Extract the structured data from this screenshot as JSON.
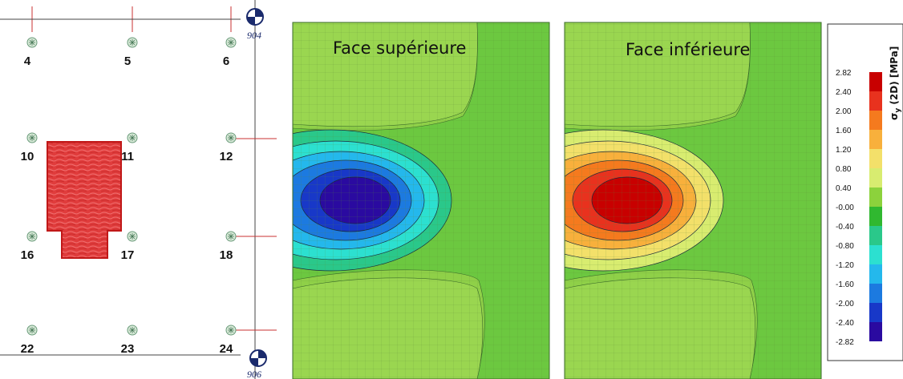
{
  "plan": {
    "nodes": [
      "4",
      "5",
      "6",
      "10",
      "11",
      "12",
      "16",
      "17",
      "18",
      "22",
      "23",
      "24"
    ],
    "axes": [
      "904",
      "906"
    ]
  },
  "maps": [
    {
      "title": "Face supérieure",
      "sign": "negative"
    },
    {
      "title": "Face inférieure",
      "sign": "positive"
    }
  ],
  "legend": {
    "title": "σ",
    "subscript": "y",
    "suffix": " (2D) [MPa]",
    "ticks": [
      "2.82",
      "2.40",
      "2.00",
      "1.60",
      "1.20",
      "0.80",
      "0.40",
      "-0.00",
      "-0.40",
      "-0.80",
      "-1.20",
      "-1.60",
      "-2.00",
      "-2.40",
      "-2.82"
    ],
    "colors": [
      "#c80000",
      "#e8321e",
      "#f57a1e",
      "#f8b03c",
      "#f3e06a",
      "#d8ec70",
      "#8cd23c",
      "#30b830",
      "#2ac88a",
      "#2ce0d0",
      "#24b8ec",
      "#1c7ae0",
      "#1838c8",
      "#2a0aa0"
    ]
  },
  "colors": {
    "element": "#e03232",
    "element_stroke": "#c01818",
    "mesh_green": "#8fd048",
    "mid_green": "#6cc840",
    "axis_blue": "#1a2a6c"
  }
}
